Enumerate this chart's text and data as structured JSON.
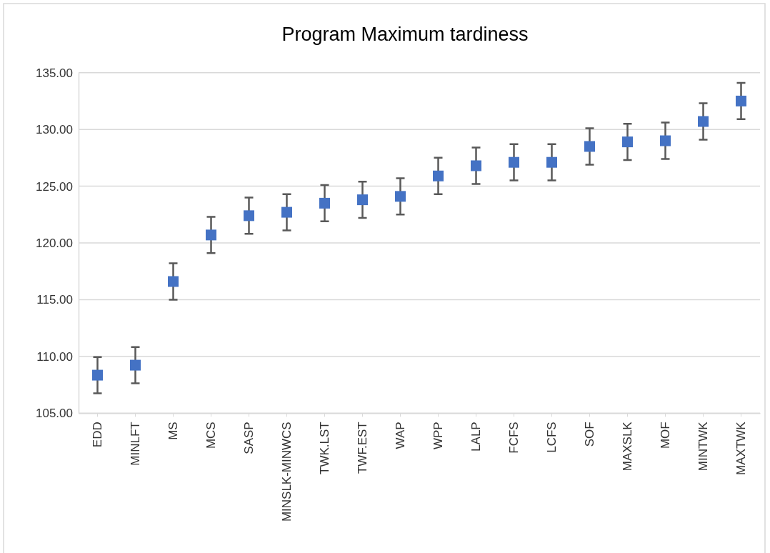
{
  "chart_data": {
    "type": "scatter",
    "title": "Program Maximum tardiness",
    "categories": [
      "EDD",
      "MINLFT",
      "MS",
      "MCS",
      "SASP",
      "MINSLK-MINWCS",
      "TWK.LST",
      "TWF.EST",
      "WAP",
      "WPP",
      "LALP",
      "FCFS",
      "LCFS",
      "SOF",
      "MAXSLK",
      "MOF",
      "MINTWK",
      "MAXTWK"
    ],
    "series": [
      {
        "color": "#4472c4",
        "values": [
          108.35,
          109.23,
          116.6,
          120.7,
          122.4,
          122.7,
          123.5,
          123.8,
          124.1,
          125.9,
          126.8,
          127.1,
          127.1,
          128.5,
          128.9,
          129.0,
          130.7,
          132.5
        ],
        "errors": [
          1.6,
          1.6,
          1.6,
          1.6,
          1.6,
          1.6,
          1.6,
          1.6,
          1.6,
          1.6,
          1.6,
          1.6,
          1.6,
          1.6,
          1.6,
          1.6,
          1.6,
          1.6
        ]
      }
    ],
    "ylim": [
      105,
      135
    ],
    "yticks": [
      {
        "value": 105,
        "label": "105.00"
      },
      {
        "value": 110,
        "label": "110.00"
      },
      {
        "value": 115,
        "label": "115.00"
      },
      {
        "value": 120,
        "label": "120.00"
      },
      {
        "value": 125,
        "label": "125.00"
      },
      {
        "value": 130,
        "label": "130.00"
      },
      {
        "value": 135,
        "label": "135.00"
      }
    ],
    "grid": "y",
    "marker": "square"
  }
}
